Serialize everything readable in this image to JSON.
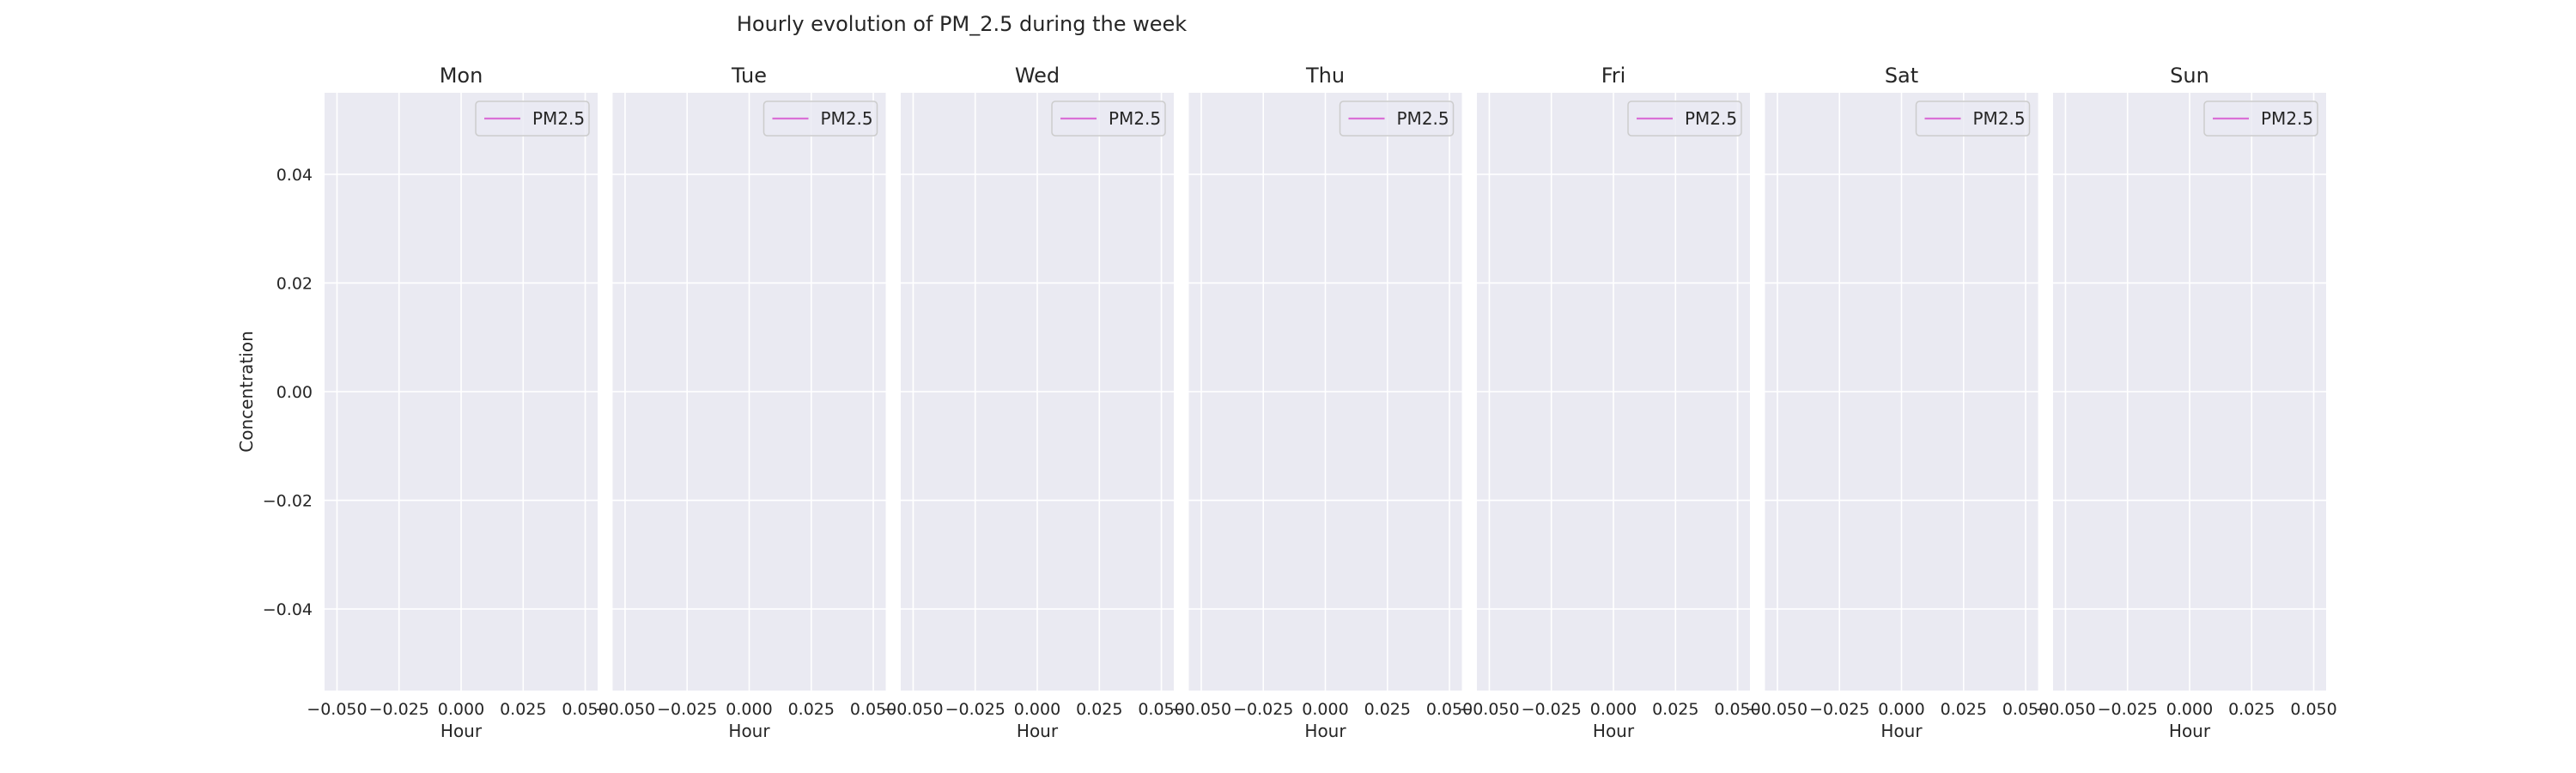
{
  "chart_data": {
    "type": "line",
    "title": "Hourly evolution of PM_2.5 during the week",
    "ylabel": "Concentration",
    "xlabel": "Hour",
    "xlim": [
      -0.055,
      0.055
    ],
    "ylim": [
      -0.055,
      0.055
    ],
    "x_ticks": [
      -0.05,
      -0.025,
      0.0,
      0.025,
      0.05
    ],
    "x_tick_labels": [
      "−0.050",
      "−0.025",
      "0.000",
      "0.025",
      "0.050"
    ],
    "y_ticks": [
      0.04,
      0.02,
      0.0,
      -0.02,
      -0.04
    ],
    "y_tick_labels": [
      "0.04",
      "0.02",
      "0.00",
      "−0.02",
      "−0.04"
    ],
    "grid": true,
    "legend_position": "top-right",
    "facecolor": "#eaeaf2",
    "gridcolor": "#ffffff",
    "series_color": "#da70d6",
    "panels": [
      {
        "title": "Mon",
        "series": [
          {
            "name": "PM2.5",
            "x": [],
            "y": []
          }
        ]
      },
      {
        "title": "Tue",
        "series": [
          {
            "name": "PM2.5",
            "x": [],
            "y": []
          }
        ]
      },
      {
        "title": "Wed",
        "series": [
          {
            "name": "PM2.5",
            "x": [],
            "y": []
          }
        ]
      },
      {
        "title": "Thu",
        "series": [
          {
            "name": "PM2.5",
            "x": [],
            "y": []
          }
        ]
      },
      {
        "title": "Fri",
        "series": [
          {
            "name": "PM2.5",
            "x": [],
            "y": []
          }
        ]
      },
      {
        "title": "Sat",
        "series": [
          {
            "name": "PM2.5",
            "x": [],
            "y": []
          }
        ]
      },
      {
        "title": "Sun",
        "series": [
          {
            "name": "PM2.5",
            "x": [],
            "y": []
          }
        ]
      }
    ]
  }
}
